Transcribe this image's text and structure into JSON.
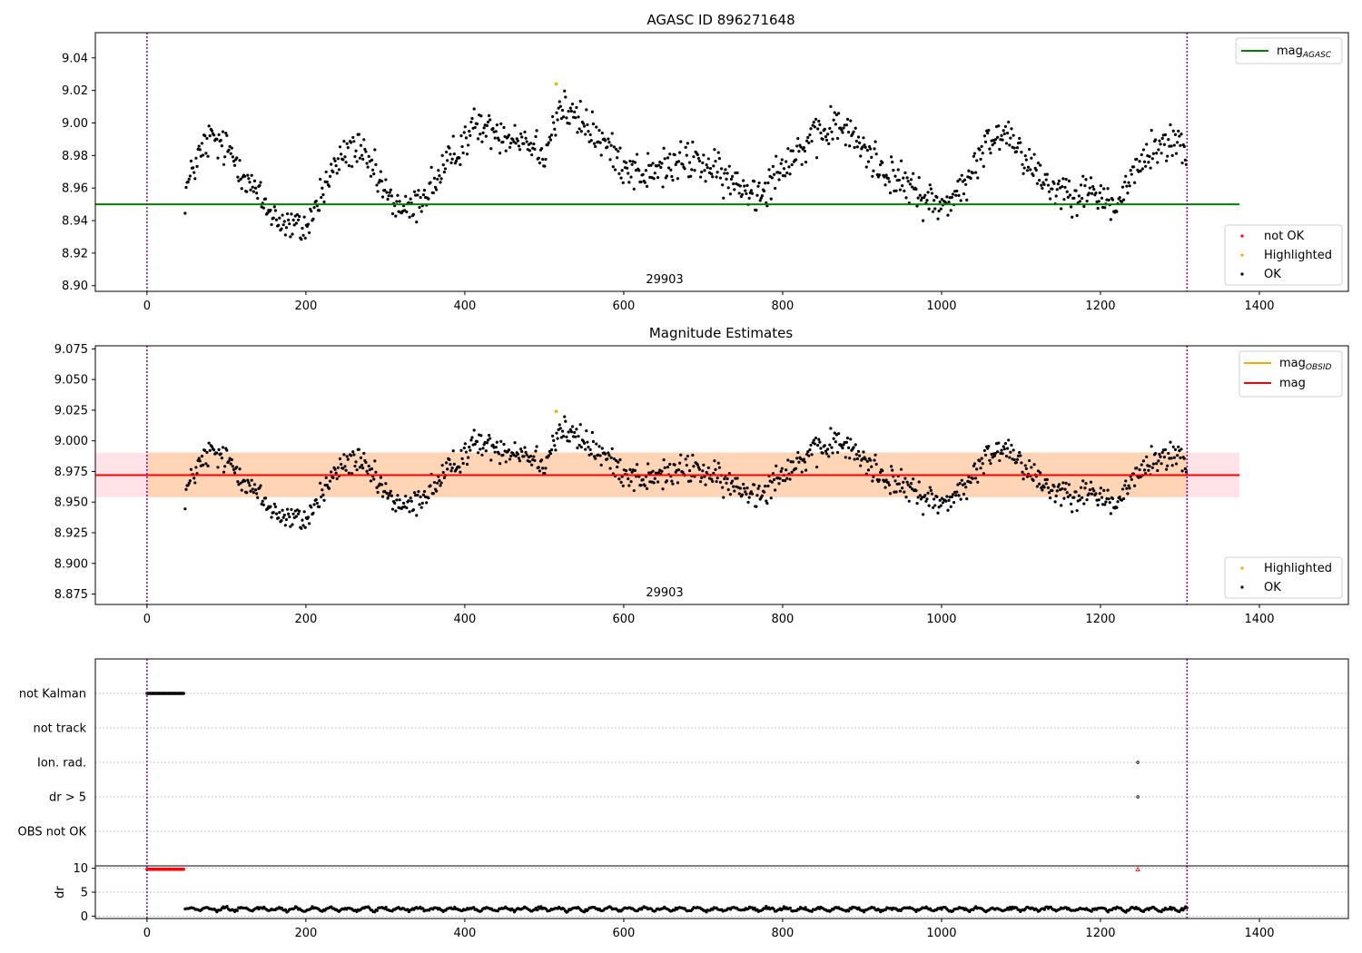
{
  "chart_data": [
    {
      "type": "scatter",
      "title": "AGASC ID 896271648",
      "annotation": "29903",
      "xlim": [
        -65,
        1512
      ],
      "ylim": [
        8.8965,
        9.0555
      ],
      "x_ticks": [
        0,
        200,
        400,
        600,
        800,
        1000,
        1200,
        1400
      ],
      "y_ticks": [
        8.9,
        8.92,
        8.94,
        8.96,
        8.98,
        9.0,
        9.02,
        9.04
      ],
      "y_tick_labels": [
        "8.90",
        "8.92",
        "8.94",
        "8.96",
        "8.98",
        "9.00",
        "9.02",
        "9.04"
      ],
      "vlines": [
        0,
        1309
      ],
      "hline": {
        "name": "mag_AGASC",
        "label_main": "mag",
        "label_sub": "AGASC",
        "y": 8.95,
        "x": [
          -65,
          1375
        ],
        "color": "#008000"
      },
      "legend_lines": [
        {
          "label_main": "mag",
          "label_sub": "AGASC",
          "color": "#008000"
        }
      ],
      "legend_points": [
        {
          "label": "not OK",
          "color": "#ff0000"
        },
        {
          "label": "Highlighted",
          "color": "#ffa500"
        },
        {
          "label": "OK",
          "color": "#000000"
        }
      ],
      "highlighted": [
        {
          "x": 515,
          "y": 9.024
        }
      ],
      "ok_series": {
        "name": "OK",
        "x_start": 48,
        "x_end": 1309,
        "step": 1.25,
        "baseline": 8.955,
        "anchors_x": [
          48,
          60,
          80,
          105,
          130,
          150,
          175,
          200,
          225,
          245,
          262,
          285,
          305,
          330,
          360,
          380,
          410,
          440,
          475,
          500,
          520,
          560,
          600,
          625,
          650,
          690,
          740,
          770,
          800,
          835,
          870,
          900,
          930,
          960,
          1000,
          1035,
          1060,
          1085,
          1110,
          1140,
          1170,
          1200,
          1220,
          1245,
          1270,
          1300,
          1309
        ],
        "anchors_y": [
          8.956,
          8.975,
          8.991,
          8.982,
          8.963,
          8.948,
          8.937,
          8.935,
          8.962,
          8.98,
          8.985,
          8.97,
          8.953,
          8.945,
          8.962,
          8.975,
          8.998,
          8.995,
          8.99,
          8.982,
          9.01,
          8.995,
          8.975,
          8.968,
          8.972,
          8.978,
          8.962,
          8.957,
          8.975,
          8.988,
          9.0,
          8.985,
          8.97,
          8.96,
          8.948,
          8.965,
          8.99,
          8.995,
          8.975,
          8.96,
          8.958,
          8.955,
          8.948,
          8.972,
          8.985,
          8.99,
          8.975
        ]
      }
    },
    {
      "type": "scatter",
      "title": "Magnitude Estimates",
      "annotation": "29903",
      "xlim": [
        -65,
        1512
      ],
      "ylim": [
        8.8665,
        9.0775
      ],
      "x_ticks": [
        0,
        200,
        400,
        600,
        800,
        1000,
        1200,
        1400
      ],
      "y_ticks": [
        8.875,
        8.9,
        8.925,
        8.95,
        8.975,
        9.0,
        9.025,
        9.05,
        9.075
      ],
      "y_tick_labels": [
        "8.875",
        "8.900",
        "8.925",
        "8.950",
        "8.975",
        "9.000",
        "9.025",
        "9.050",
        "9.075"
      ],
      "vlines": [
        0,
        1309
      ],
      "band_outer": {
        "y": [
          8.954,
          8.9905
        ],
        "x": [
          -65,
          1375
        ],
        "color": "#ffc0cb"
      },
      "band_inner": {
        "y": [
          8.954,
          8.9905
        ],
        "x": [
          0,
          1309
        ],
        "color": "#ffa500"
      },
      "mag_line": {
        "name": "mag",
        "y": 8.972,
        "x": [
          -65,
          1375
        ],
        "color": "#ff0000"
      },
      "legend_lines": [
        {
          "label_main": "mag",
          "label_sub": "OBSID",
          "color": "#ffa500"
        },
        {
          "label_main": "mag",
          "label_sub": "",
          "color": "#ff0000"
        }
      ],
      "legend_points": [
        {
          "label": "Highlighted",
          "color": "#ffa500"
        },
        {
          "label": "OK",
          "color": "#000000"
        }
      ],
      "highlighted": [
        {
          "x": 515,
          "y": 9.024
        }
      ]
    },
    {
      "type": "scatter",
      "title": "",
      "xlim": [
        -65,
        1512
      ],
      "categories": [
        "not Kalman",
        "not track",
        "Ion. rad.",
        "dr > 5",
        "OBS not OK"
      ],
      "flags": [
        {
          "category": "not Kalman",
          "x_range": [
            0,
            47
          ],
          "color": "#000000"
        },
        {
          "category": "Ion. rad.",
          "x": [
            1247
          ],
          "color": "#000000"
        },
        {
          "category": "dr > 5",
          "x": [
            1247
          ],
          "color": "#000000"
        }
      ],
      "vlines": [
        0,
        1309
      ]
    },
    {
      "type": "scatter",
      "title": "",
      "ylabel": "dr",
      "xlim": [
        -65,
        1512
      ],
      "ylim": [
        -0.5,
        10.5
      ],
      "x_ticks": [
        0,
        200,
        400,
        600,
        800,
        1000,
        1200,
        1400
      ],
      "y_ticks": [
        0,
        5,
        10
      ],
      "vlines": [
        0,
        1309
      ],
      "dr_clipped": {
        "y": 9.8,
        "x_range": [
          0,
          47
        ],
        "extra_x": [
          1247
        ],
        "color": "#ff0000"
      },
      "dr_series": {
        "x_start": 48,
        "x_end": 1309,
        "step": 1.6,
        "base": 1.3,
        "amplitude": 0.9,
        "period": 22
      }
    }
  ]
}
